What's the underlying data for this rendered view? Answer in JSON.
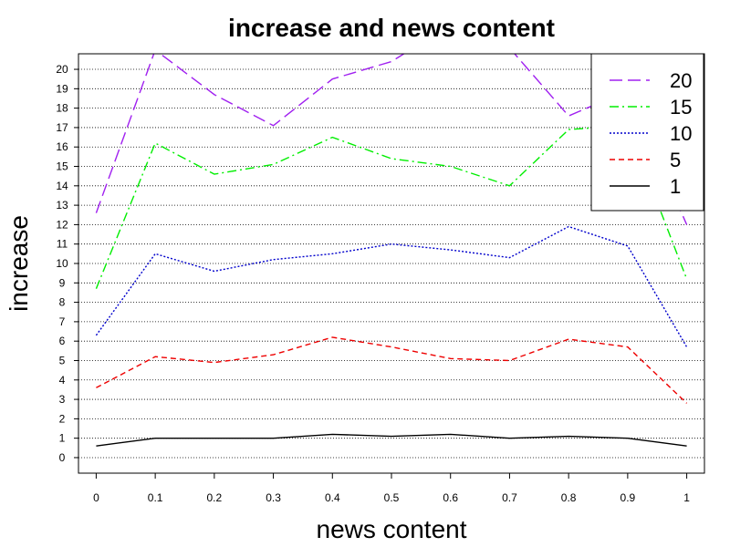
{
  "chart_data": {
    "type": "line",
    "title": "increase and news content",
    "xlabel": "news content",
    "ylabel": "increase",
    "x": [
      0,
      0.1,
      0.2,
      0.3,
      0.4,
      0.5,
      0.6,
      0.7,
      0.8,
      0.9,
      1
    ],
    "x_ticks": [
      "0",
      "0.1",
      "0.2",
      "0.3",
      "0.4",
      "0.5",
      "0.6",
      "0.7",
      "0.8",
      "0.9",
      "1"
    ],
    "y_ticks": [
      "0",
      "1",
      "2",
      "3",
      "4",
      "5",
      "6",
      "7",
      "8",
      "9",
      "10",
      "11",
      "12",
      "13",
      "14",
      "15",
      "16",
      "17",
      "18",
      "19",
      "20"
    ],
    "xlim": [
      -0.03,
      1.03
    ],
    "ylim": [
      -0.8,
      20.8
    ],
    "grid": "horizontal dotted",
    "legend_position": "top-right",
    "series": [
      {
        "name": "20",
        "color": "#a020f0",
        "dash": "long-dash",
        "values": [
          12.6,
          21.0,
          18.7,
          17.1,
          19.5,
          20.4,
          22.3,
          21.1,
          17.6,
          18.9,
          12.0
        ]
      },
      {
        "name": "15",
        "color": "#00ee00",
        "dash": "dot-dash",
        "values": [
          8.7,
          16.2,
          14.6,
          15.1,
          16.5,
          15.4,
          15.0,
          14.0,
          16.9,
          17.1,
          9.2
        ]
      },
      {
        "name": "10",
        "color": "#0000cc",
        "dash": "dotted",
        "values": [
          6.3,
          10.5,
          9.6,
          10.2,
          10.5,
          11.0,
          10.7,
          10.3,
          11.9,
          10.9,
          5.7
        ]
      },
      {
        "name": "5",
        "color": "#ee0000",
        "dash": "dashed",
        "values": [
          3.6,
          5.2,
          4.9,
          5.3,
          6.2,
          5.7,
          5.1,
          5.0,
          6.1,
          5.7,
          2.8
        ]
      },
      {
        "name": "1",
        "color": "#000000",
        "dash": "solid",
        "values": [
          0.6,
          1.0,
          1.0,
          1.0,
          1.2,
          1.1,
          1.2,
          1.0,
          1.1,
          1.0,
          0.6
        ]
      }
    ]
  }
}
